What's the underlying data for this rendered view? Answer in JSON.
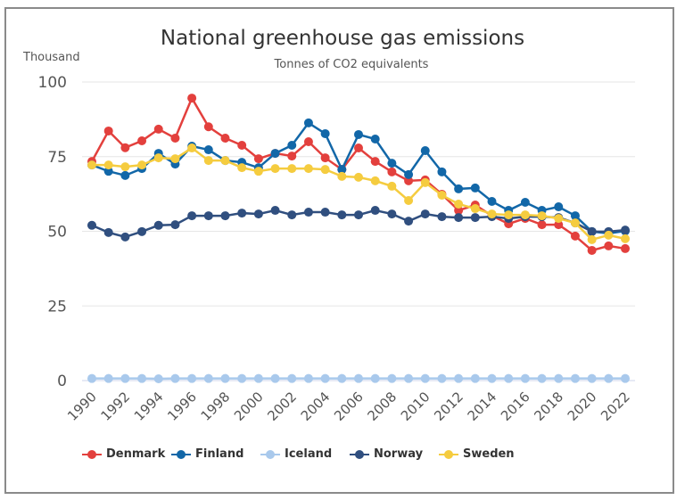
{
  "chart_data": {
    "type": "line",
    "title": "National greenhouse gas emissions",
    "subtitle": "Tonnes of CO2 equivalents",
    "ylabel": "Thousand",
    "xlabel": "",
    "ylim": [
      0,
      100
    ],
    "yticks": [
      "0",
      "25",
      "50",
      "75",
      "100"
    ],
    "xticks": [
      "1990",
      "1992",
      "1994",
      "1996",
      "1998",
      "2000",
      "2002",
      "2004",
      "2006",
      "2008",
      "2010",
      "2012",
      "2014",
      "2016",
      "2018",
      "2020",
      "2022"
    ],
    "grid": true,
    "legend": "bottom",
    "x": [
      1990,
      1991,
      1992,
      1993,
      1994,
      1995,
      1996,
      1997,
      1998,
      1999,
      2000,
      2001,
      2002,
      2003,
      2004,
      2005,
      2006,
      2007,
      2008,
      2009,
      2010,
      2011,
      2012,
      2013,
      2014,
      2015,
      2016,
      2017,
      2018,
      2019,
      2020,
      2021,
      2022
    ],
    "series": [
      {
        "name": "Denmark",
        "color": "#e3403d",
        "values": [
          73.4,
          83.6,
          78,
          80.3,
          84.2,
          81.2,
          94.6,
          85,
          81.2,
          78.8,
          74.3,
          76.1,
          75.2,
          80,
          74.6,
          70.7,
          77.9,
          73.4,
          69.9,
          66.9,
          67.2,
          62.4,
          57,
          58.8,
          55.2,
          52.5,
          54.3,
          52.2,
          52.2,
          48.4,
          43.6,
          45.1,
          44.2
        ]
      },
      {
        "name": "Finland",
        "color": "#1267a8",
        "values": [
          72.2,
          70.1,
          68.7,
          71,
          76.1,
          72.5,
          78.5,
          77.3,
          73.7,
          73.1,
          71.3,
          76.1,
          78.8,
          86.3,
          82.7,
          70.7,
          82.4,
          80.9,
          72.8,
          69,
          77,
          69.9,
          64.2,
          64.5,
          60,
          57,
          59.7,
          57,
          58.2,
          55.2,
          49.9,
          49.3,
          50.1
        ]
      },
      {
        "name": "Iceland",
        "color": "#a9c9ec",
        "values": [
          0.7,
          0.7,
          0.7,
          0.7,
          0.6,
          0.7,
          0.7,
          0.7,
          0.7,
          0.7,
          0.7,
          0.7,
          0.7,
          0.7,
          0.7,
          0.7,
          0.7,
          0.7,
          0.7,
          0.7,
          0.7,
          0.7,
          0.7,
          0.7,
          0.7,
          0.7,
          0.7,
          0.7,
          0.7,
          0.7,
          0.7,
          0.7,
          0.7
        ]
      },
      {
        "name": "Norway",
        "color": "#304f7f",
        "values": [
          52,
          49.6,
          48.1,
          49.9,
          52,
          52.2,
          55.2,
          55.2,
          55.2,
          56.1,
          55.8,
          57,
          55.5,
          56.4,
          56.4,
          55.5,
          55.5,
          57,
          55.8,
          53.4,
          55.8,
          54.9,
          54.6,
          54.6,
          54.9,
          54.3,
          54.9,
          54.9,
          54.6,
          52.8,
          49.9,
          49.9,
          50.4
        ]
      },
      {
        "name": "Sweden",
        "color": "#f5cc3f",
        "values": [
          72.2,
          72.2,
          71.6,
          72.2,
          74.6,
          74.3,
          77.9,
          73.7,
          73.7,
          71.3,
          70.1,
          71,
          71,
          71,
          70.7,
          68.4,
          68.1,
          66.9,
          65.1,
          60.3,
          66.3,
          62.1,
          59.1,
          57.6,
          55.8,
          55.5,
          55.5,
          55.2,
          54.3,
          52.8,
          47.2,
          48.7,
          47.5
        ]
      }
    ]
  }
}
